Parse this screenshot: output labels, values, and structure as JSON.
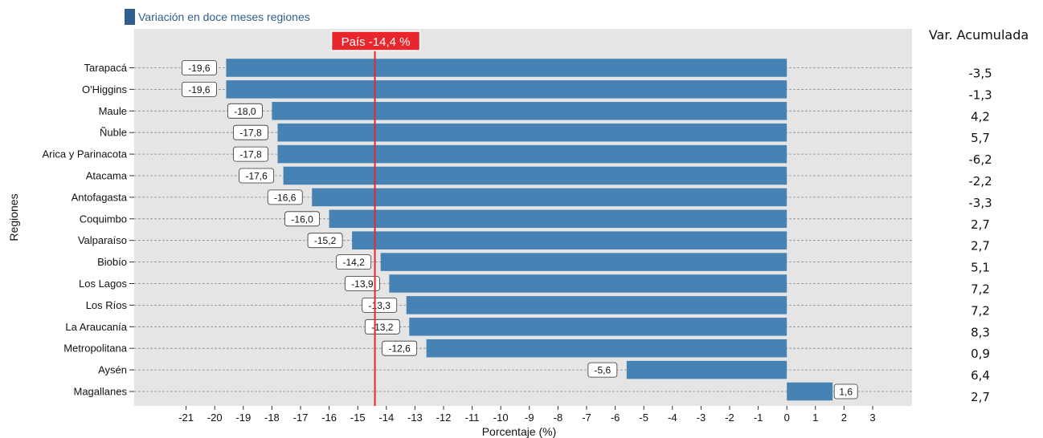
{
  "colors": {
    "bar": "#4682b4",
    "panel": "#e5e5e5",
    "reference": "#e8262b",
    "legend_swatch": "#2f5f8a"
  },
  "chart_data": {
    "type": "bar",
    "orientation": "horizontal",
    "legend_label": "Variación en doce meses regiones",
    "legend_position": "top-left",
    "xlabel": "Porcentaje (%)",
    "ylabel": "Regiones",
    "xlim": [
      -22,
      4.4
    ],
    "x_ticks": [
      -21,
      -20,
      -19,
      -18,
      -17,
      -16,
      -15,
      -14,
      -13,
      -12,
      -11,
      -10,
      -9,
      -8,
      -7,
      -6,
      -5,
      -4,
      -3,
      -2,
      -1,
      0,
      1,
      2,
      3
    ],
    "grid": "horizontal-dashed",
    "categories": [
      "Tarapacá",
      "O'Higgins",
      "Maule",
      "Ñuble",
      "Arica y Parinacota",
      "Atacama",
      "Antofagasta",
      "Coquimbo",
      "Valparaíso",
      "Biobío",
      "Los Lagos",
      "Los Ríos",
      "La Araucanía",
      "Metropolitana",
      "Aysén",
      "Magallanes"
    ],
    "values": [
      -19.6,
      -19.6,
      -18.0,
      -17.8,
      -17.8,
      -17.6,
      -16.6,
      -16.0,
      -15.2,
      -14.2,
      -13.9,
      -13.3,
      -13.2,
      -12.6,
      -5.6,
      1.6
    ],
    "value_labels": [
      "-19,6",
      "-19,6",
      "-18,0",
      "-17,8",
      "-17,8",
      "-17,6",
      "-16,6",
      "-16,0",
      "-15,2",
      "-14,2",
      "-13,9",
      "-13,3",
      "-13,2",
      "-12,6",
      "-5,6",
      "1,6"
    ],
    "reference_line": {
      "value": -14.4,
      "label": "País -14,4 %"
    },
    "secondary_column": {
      "title": "Var. Acumulada",
      "values": [
        "-3,5",
        "-1,3",
        "4,2",
        "5,7",
        "-6,2",
        "-2,2",
        "-3,3",
        "2,7",
        "2,7",
        "5,1",
        "7,2",
        "7,2",
        "8,3",
        "0,9",
        "6,4",
        "2,7"
      ]
    }
  }
}
